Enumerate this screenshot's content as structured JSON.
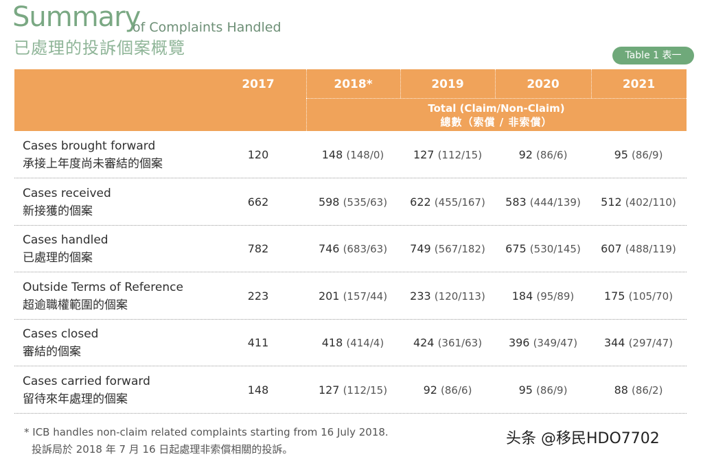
{
  "title": {
    "main": "Summary",
    "sub": "of Complaints Handled",
    "zh": "已處理的投訴個案概覽"
  },
  "badge": "Table 1 表一",
  "header": {
    "years": [
      "2017",
      "2018*",
      "2019",
      "2020",
      "2021"
    ],
    "total_en": "Total (Claim/Non-Claim)",
    "total_zh": "總數（索償 / 非索償）"
  },
  "rows": [
    {
      "label_en": "Cases brought forward",
      "label_zh": "承接上年度尚未審結的個案",
      "values": [
        {
          "main": "120",
          "sub": ""
        },
        {
          "main": "148",
          "sub": "(148/0)"
        },
        {
          "main": "127",
          "sub": "(112/15)"
        },
        {
          "main": "92",
          "sub": "(86/6)"
        },
        {
          "main": "95",
          "sub": "(86/9)"
        }
      ]
    },
    {
      "label_en": "Cases received",
      "label_zh": "新接獲的個案",
      "values": [
        {
          "main": "662",
          "sub": ""
        },
        {
          "main": "598",
          "sub": "(535/63)"
        },
        {
          "main": "622",
          "sub": "(455/167)"
        },
        {
          "main": "583",
          "sub": "(444/139)"
        },
        {
          "main": "512",
          "sub": "(402/110)"
        }
      ]
    },
    {
      "label_en": "Cases handled",
      "label_zh": "已處理的個案",
      "values": [
        {
          "main": "782",
          "sub": ""
        },
        {
          "main": "746",
          "sub": "(683/63)"
        },
        {
          "main": "749",
          "sub": "(567/182)"
        },
        {
          "main": "675",
          "sub": "(530/145)"
        },
        {
          "main": "607",
          "sub": "(488/119)"
        }
      ]
    },
    {
      "label_en": "Outside Terms of Reference",
      "label_zh": "超逾職權範圍的個案",
      "values": [
        {
          "main": "223",
          "sub": ""
        },
        {
          "main": "201",
          "sub": "(157/44)"
        },
        {
          "main": "233",
          "sub": "(120/113)"
        },
        {
          "main": "184",
          "sub": "(95/89)"
        },
        {
          "main": "175",
          "sub": "(105/70)"
        }
      ]
    },
    {
      "label_en": "Cases closed",
      "label_zh": "審結的個案",
      "values": [
        {
          "main": "411",
          "sub": ""
        },
        {
          "main": "418",
          "sub": "(414/4)"
        },
        {
          "main": "424",
          "sub": "(361/63)"
        },
        {
          "main": "396",
          "sub": "(349/47)"
        },
        {
          "main": "344",
          "sub": "(297/47)"
        }
      ]
    },
    {
      "label_en": "Cases carried forward",
      "label_zh": "留待來年處理的個案",
      "values": [
        {
          "main": "148",
          "sub": ""
        },
        {
          "main": "127",
          "sub": "(112/15)"
        },
        {
          "main": "92",
          "sub": "(86/6)"
        },
        {
          "main": "95",
          "sub": "(86/9)"
        },
        {
          "main": "88",
          "sub": "(86/2)"
        }
      ]
    }
  ],
  "footnote": {
    "en": "* ICB handles non-claim related complaints starting from 16 July 2018.",
    "zh": "投訴局於 2018 年 7 月 16 日起處理非索償相關的投訴。"
  },
  "watermark": "头条 @移民HDO7702",
  "colors": {
    "header_bg": "#f0a35a",
    "title_green": "#7aa883",
    "badge_green": "#6fa97a"
  }
}
